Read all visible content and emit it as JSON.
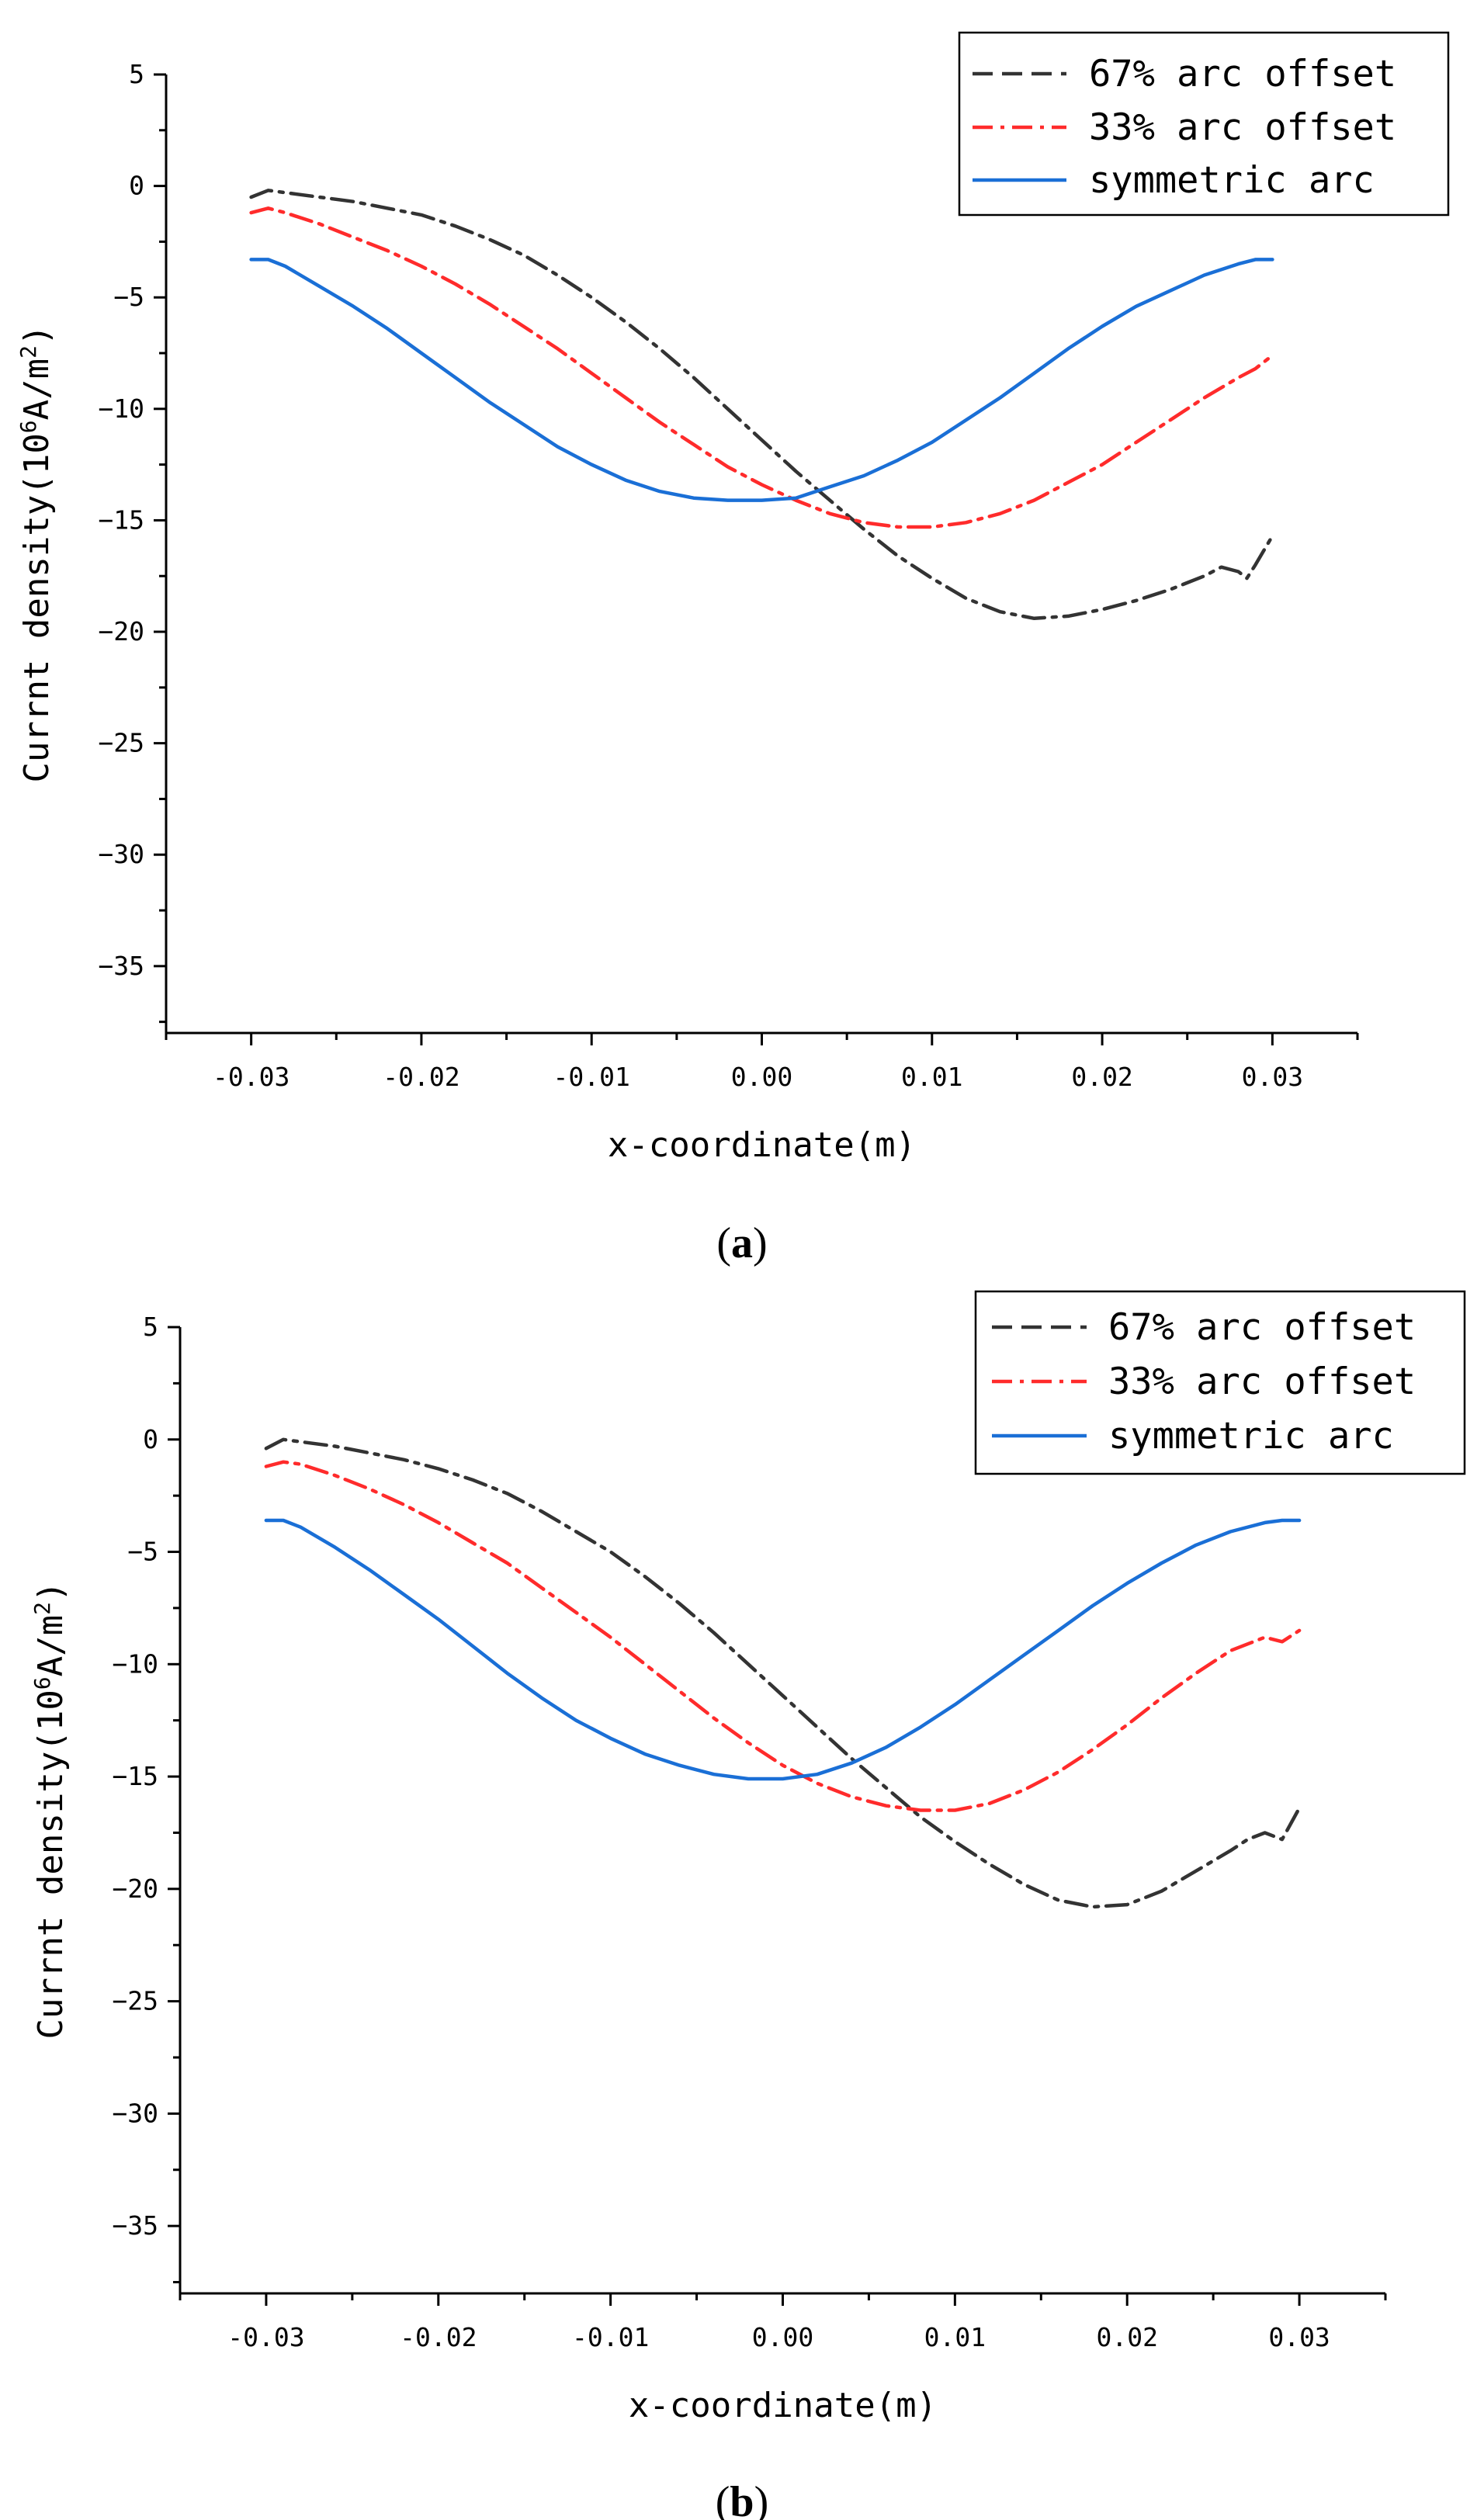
{
  "chart_data": [
    {
      "type": "line",
      "caption": {
        "open": "(",
        "letter": "a",
        "close": ")"
      },
      "xlabel": "x-coordinate(m)",
      "ylabel": {
        "prefix": "Currnt density(10",
        "sup1": "6",
        "mid": "A/m",
        "sup2": "2",
        "suffix": ")"
      },
      "xlim": [
        -0.035,
        0.035
      ],
      "ylim": [
        -38,
        5
      ],
      "xticks": [
        -0.03,
        -0.02,
        -0.01,
        0.0,
        0.01,
        0.02,
        0.03
      ],
      "xtick_labels": [
        "-0.03",
        "-0.02",
        "-0.01",
        "0.00",
        "0.01",
        "0.02",
        "0.03"
      ],
      "yticks": [
        5,
        0,
        -5,
        -10,
        -15,
        -20,
        -25,
        -30,
        -35
      ],
      "ytick_labels": [
        "5",
        "0",
        "−5",
        "−10",
        "−15",
        "−20",
        "−25",
        "−30",
        "−35"
      ],
      "series": [
        {
          "name": "67% arc offset",
          "color": "#333333",
          "style": "dashdot",
          "x": [
            -0.03,
            -0.029,
            -0.028,
            -0.026,
            -0.024,
            -0.022,
            -0.02,
            -0.018,
            -0.016,
            -0.014,
            -0.012,
            -0.01,
            -0.008,
            -0.006,
            -0.004,
            -0.002,
            0.0,
            0.002,
            0.004,
            0.006,
            0.008,
            0.01,
            0.012,
            0.014,
            0.016,
            0.018,
            0.02,
            0.022,
            0.024,
            0.026,
            0.027,
            0.028,
            0.0285,
            0.029,
            0.03
          ],
          "y": [
            -0.5,
            -0.2,
            -0.3,
            -0.5,
            -0.7,
            -1.0,
            -1.3,
            -1.8,
            -2.4,
            -3.1,
            -4.0,
            -5.0,
            -6.1,
            -7.3,
            -8.6,
            -10.0,
            -11.4,
            -12.8,
            -14.1,
            -15.4,
            -16.6,
            -17.6,
            -18.5,
            -19.1,
            -19.4,
            -19.3,
            -19.0,
            -18.6,
            -18.1,
            -17.5,
            -17.1,
            -17.3,
            -17.6,
            -17.0,
            -15.7
          ]
        },
        {
          "name": "33% arc offset",
          "color": "#ff2b2b",
          "style": "dashdot",
          "x": [
            -0.03,
            -0.029,
            -0.028,
            -0.026,
            -0.024,
            -0.022,
            -0.02,
            -0.018,
            -0.016,
            -0.014,
            -0.012,
            -0.01,
            -0.008,
            -0.006,
            -0.004,
            -0.002,
            0.0,
            0.002,
            0.004,
            0.006,
            0.008,
            0.01,
            0.012,
            0.014,
            0.016,
            0.018,
            0.02,
            0.022,
            0.024,
            0.026,
            0.028,
            0.029,
            0.03
          ],
          "y": [
            -1.2,
            -1.0,
            -1.2,
            -1.7,
            -2.3,
            -2.9,
            -3.6,
            -4.4,
            -5.3,
            -6.3,
            -7.3,
            -8.4,
            -9.5,
            -10.6,
            -11.6,
            -12.6,
            -13.4,
            -14.1,
            -14.7,
            -15.1,
            -15.3,
            -15.3,
            -15.1,
            -14.7,
            -14.1,
            -13.3,
            -12.5,
            -11.5,
            -10.5,
            -9.5,
            -8.6,
            -8.2,
            -7.6
          ]
        },
        {
          "name": "symmetric arc",
          "color": "#1a6fd6",
          "style": "solid",
          "x": [
            -0.03,
            -0.029,
            -0.028,
            -0.026,
            -0.024,
            -0.022,
            -0.02,
            -0.018,
            -0.016,
            -0.014,
            -0.012,
            -0.01,
            -0.008,
            -0.006,
            -0.004,
            -0.002,
            0.0,
            0.002,
            0.004,
            0.006,
            0.008,
            0.01,
            0.012,
            0.014,
            0.016,
            0.018,
            0.02,
            0.022,
            0.024,
            0.026,
            0.028,
            0.029,
            0.03
          ],
          "y": [
            -3.3,
            -3.3,
            -3.6,
            -4.5,
            -5.4,
            -6.4,
            -7.5,
            -8.6,
            -9.7,
            -10.7,
            -11.7,
            -12.5,
            -13.2,
            -13.7,
            -14.0,
            -14.1,
            -14.1,
            -14.0,
            -13.5,
            -13.0,
            -12.3,
            -11.5,
            -10.5,
            -9.5,
            -8.4,
            -7.3,
            -6.3,
            -5.4,
            -4.7,
            -4.0,
            -3.5,
            -3.3,
            -3.3
          ]
        }
      ]
    },
    {
      "type": "line",
      "caption": {
        "open": "(",
        "letter": "b",
        "close": ")"
      },
      "xlabel": "x-coordinate(m)",
      "ylabel": {
        "prefix": "Currnt density(10",
        "sup1": "6",
        "mid": "A/m",
        "sup2": "2",
        "suffix": ")"
      },
      "xlim": [
        -0.035,
        0.035
      ],
      "ylim": [
        -38,
        5
      ],
      "xticks": [
        -0.03,
        -0.02,
        -0.01,
        0.0,
        0.01,
        0.02,
        0.03
      ],
      "xtick_labels": [
        "-0.03",
        "-0.02",
        "-0.01",
        "0.00",
        "0.01",
        "0.02",
        "0.03"
      ],
      "yticks": [
        5,
        0,
        -5,
        -10,
        -15,
        -20,
        -25,
        -30,
        -35
      ],
      "ytick_labels": [
        "5",
        "0",
        "−5",
        "−10",
        "−15",
        "−20",
        "−25",
        "−30",
        "−35"
      ],
      "series": [
        {
          "name": "67% arc offset",
          "color": "#333333",
          "style": "dashdot",
          "x": [
            -0.03,
            -0.029,
            -0.028,
            -0.026,
            -0.024,
            -0.022,
            -0.02,
            -0.018,
            -0.016,
            -0.014,
            -0.012,
            -0.01,
            -0.008,
            -0.006,
            -0.004,
            -0.002,
            0.0,
            0.002,
            0.004,
            0.006,
            0.008,
            0.01,
            0.012,
            0.014,
            0.016,
            0.018,
            0.02,
            0.022,
            0.024,
            0.026,
            0.027,
            0.028,
            0.029,
            0.03
          ],
          "y": [
            -0.4,
            0.0,
            -0.1,
            -0.3,
            -0.6,
            -0.9,
            -1.3,
            -1.8,
            -2.4,
            -3.2,
            -4.1,
            -5.0,
            -6.1,
            -7.3,
            -8.6,
            -10.0,
            -11.4,
            -12.8,
            -14.2,
            -15.5,
            -16.8,
            -17.9,
            -18.9,
            -19.8,
            -20.5,
            -20.8,
            -20.7,
            -20.1,
            -19.2,
            -18.3,
            -17.8,
            -17.5,
            -17.8,
            -16.4
          ]
        },
        {
          "name": "33% arc offset",
          "color": "#ff2b2b",
          "style": "dashdot",
          "x": [
            -0.03,
            -0.029,
            -0.028,
            -0.026,
            -0.024,
            -0.022,
            -0.02,
            -0.018,
            -0.016,
            -0.014,
            -0.012,
            -0.01,
            -0.008,
            -0.006,
            -0.004,
            -0.002,
            0.0,
            0.002,
            0.004,
            0.006,
            0.008,
            0.01,
            0.012,
            0.014,
            0.016,
            0.018,
            0.02,
            0.022,
            0.024,
            0.026,
            0.028,
            0.029,
            0.03
          ],
          "y": [
            -1.2,
            -1.0,
            -1.1,
            -1.6,
            -2.2,
            -2.9,
            -3.7,
            -4.6,
            -5.5,
            -6.6,
            -7.7,
            -8.8,
            -10.0,
            -11.2,
            -12.4,
            -13.5,
            -14.5,
            -15.3,
            -15.9,
            -16.3,
            -16.5,
            -16.5,
            -16.2,
            -15.6,
            -14.8,
            -13.8,
            -12.7,
            -11.5,
            -10.4,
            -9.4,
            -8.8,
            -9.0,
            -8.5
          ]
        },
        {
          "name": "symmetric arc",
          "color": "#1a6fd6",
          "style": "solid",
          "x": [
            -0.03,
            -0.029,
            -0.028,
            -0.026,
            -0.024,
            -0.022,
            -0.02,
            -0.018,
            -0.016,
            -0.014,
            -0.012,
            -0.01,
            -0.008,
            -0.006,
            -0.004,
            -0.002,
            0.0,
            0.002,
            0.004,
            0.006,
            0.008,
            0.01,
            0.012,
            0.014,
            0.016,
            0.018,
            0.02,
            0.022,
            0.024,
            0.026,
            0.028,
            0.029,
            0.03
          ],
          "y": [
            -3.6,
            -3.6,
            -3.9,
            -4.8,
            -5.8,
            -6.9,
            -8.0,
            -9.2,
            -10.4,
            -11.5,
            -12.5,
            -13.3,
            -14.0,
            -14.5,
            -14.9,
            -15.1,
            -15.1,
            -14.9,
            -14.4,
            -13.7,
            -12.8,
            -11.8,
            -10.7,
            -9.6,
            -8.5,
            -7.4,
            -6.4,
            -5.5,
            -4.7,
            -4.1,
            -3.7,
            -3.6,
            -3.6
          ]
        }
      ]
    }
  ]
}
